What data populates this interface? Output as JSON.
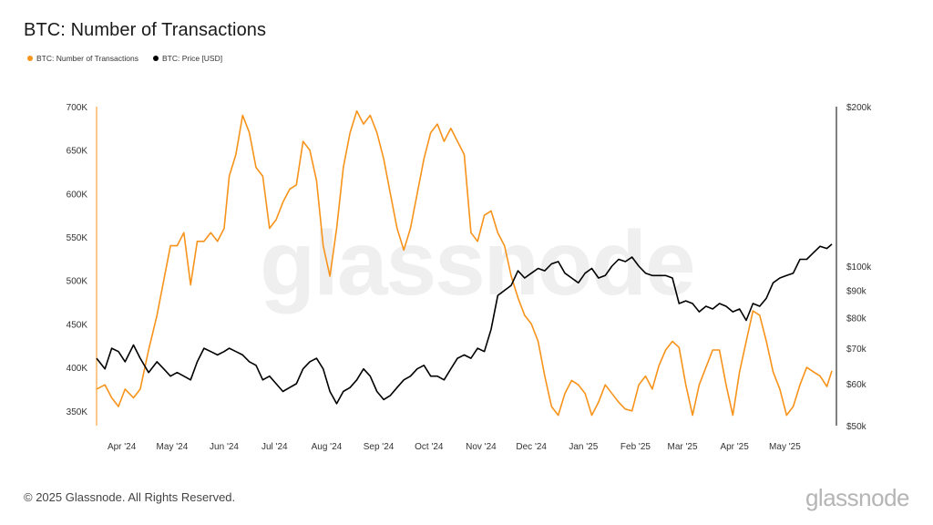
{
  "title": "BTC: Number of Transactions",
  "legend": [
    {
      "label": "BTC: Number of Transactions",
      "color": "#f7931a"
    },
    {
      "label": "BTC: Price [USD]",
      "color": "#000000"
    }
  ],
  "watermark": "glassnode",
  "footer": {
    "copyright": "© 2025 Glassnode. All Rights Reserved.",
    "logo": "glassnode"
  },
  "chart_data": {
    "type": "line",
    "title": "BTC: Number of Transactions",
    "grid": false,
    "legend_position": "top-left",
    "x_ticks": [
      "Apr '24",
      "May '24",
      "Jun '24",
      "Jul '24",
      "Aug '24",
      "Sep '24",
      "Oct '24",
      "Nov '24",
      "Dec '24",
      "Jan '25",
      "Feb '25",
      "Mar '25",
      "Apr '25",
      "May '25"
    ],
    "x_range": [
      "2024-03-17",
      "2025-05-29"
    ],
    "y_left": {
      "ticks": [
        "700K",
        "650K",
        "600K",
        "550K",
        "500K",
        "450K",
        "400K",
        "350K"
      ],
      "tick_values": [
        700000,
        650000,
        600000,
        550000,
        500000,
        450000,
        400000,
        350000
      ],
      "range": [
        333000,
        700000
      ]
    },
    "y_right": {
      "scale": "log",
      "ticks": [
        "$200k",
        "$100k",
        "$90k",
        "$80k",
        "$70k",
        "$60k",
        "$50k"
      ],
      "tick_values": [
        200000,
        100000,
        90000,
        80000,
        70000,
        60000,
        50000
      ],
      "range": [
        50000,
        200000
      ]
    },
    "series": [
      {
        "name": "BTC: Number of Transactions",
        "axis": "left",
        "color": "#f7931a",
        "x": [
          "2024-03-17",
          "2024-03-22",
          "2024-03-26",
          "2024-03-30",
          "2024-04-03",
          "2024-04-08",
          "2024-04-12",
          "2024-04-17",
          "2024-04-22",
          "2024-04-26",
          "2024-04-30",
          "2024-05-04",
          "2024-05-08",
          "2024-05-12",
          "2024-05-16",
          "2024-05-20",
          "2024-05-24",
          "2024-05-28",
          "2024-06-01",
          "2024-06-04",
          "2024-06-08",
          "2024-06-12",
          "2024-06-16",
          "2024-06-20",
          "2024-06-24",
          "2024-06-28",
          "2024-07-02",
          "2024-07-06",
          "2024-07-10",
          "2024-07-14",
          "2024-07-18",
          "2024-07-22",
          "2024-07-26",
          "2024-07-30",
          "2024-08-03",
          "2024-08-07",
          "2024-08-11",
          "2024-08-15",
          "2024-08-19",
          "2024-08-23",
          "2024-08-27",
          "2024-08-31",
          "2024-09-04",
          "2024-09-08",
          "2024-09-12",
          "2024-09-16",
          "2024-09-20",
          "2024-09-24",
          "2024-09-28",
          "2024-10-02",
          "2024-10-06",
          "2024-10-10",
          "2024-10-14",
          "2024-10-18",
          "2024-10-22",
          "2024-10-26",
          "2024-10-30",
          "2024-11-03",
          "2024-11-07",
          "2024-11-11",
          "2024-11-15",
          "2024-11-19",
          "2024-11-23",
          "2024-11-27",
          "2024-12-01",
          "2024-12-05",
          "2024-12-09",
          "2024-12-13",
          "2024-12-17",
          "2024-12-21",
          "2024-12-25",
          "2024-12-29",
          "2025-01-02",
          "2025-01-06",
          "2025-01-10",
          "2025-01-14",
          "2025-01-18",
          "2025-01-22",
          "2025-01-26",
          "2025-01-30",
          "2025-02-03",
          "2025-02-07",
          "2025-02-11",
          "2025-02-15",
          "2025-02-19",
          "2025-02-23",
          "2025-02-27",
          "2025-03-03",
          "2025-03-07",
          "2025-03-11",
          "2025-03-15",
          "2025-03-19",
          "2025-03-23",
          "2025-03-27",
          "2025-03-31",
          "2025-04-04",
          "2025-04-08",
          "2025-04-12",
          "2025-04-16",
          "2025-04-20",
          "2025-04-24",
          "2025-04-28",
          "2025-05-02",
          "2025-05-06",
          "2025-05-10",
          "2025-05-14",
          "2025-05-18",
          "2025-05-22",
          "2025-05-26",
          "2025-05-29"
        ],
        "values": [
          375000,
          380000,
          365000,
          355000,
          375000,
          365000,
          375000,
          420000,
          460000,
          500000,
          540000,
          540000,
          555000,
          495000,
          545000,
          545000,
          555000,
          545000,
          560000,
          620000,
          645000,
          690000,
          670000,
          630000,
          620000,
          560000,
          570000,
          590000,
          605000,
          610000,
          660000,
          650000,
          615000,
          540000,
          505000,
          560000,
          630000,
          670000,
          695000,
          680000,
          690000,
          670000,
          640000,
          600000,
          560000,
          535000,
          560000,
          600000,
          640000,
          670000,
          680000,
          660000,
          675000,
          660000,
          645000,
          555000,
          545000,
          575000,
          580000,
          555000,
          540000,
          505000,
          480000,
          460000,
          450000,
          430000,
          390000,
          355000,
          345000,
          370000,
          385000,
          380000,
          370000,
          345000,
          360000,
          380000,
          370000,
          360000,
          352000,
          350000,
          380000,
          390000,
          375000,
          402000,
          420000,
          430000,
          423000,
          380000,
          345000,
          380000,
          400000,
          420000,
          420000,
          380000,
          345000,
          395000,
          430000,
          465000,
          460000,
          430000,
          395000,
          375000,
          345000,
          355000,
          380000,
          400000,
          395000,
          390000,
          378000,
          396000
        ]
      },
      {
        "name": "BTC: Price [USD]",
        "axis": "right",
        "color": "#000000",
        "x": [
          "2024-03-17",
          "2024-03-22",
          "2024-03-26",
          "2024-03-30",
          "2024-04-03",
          "2024-04-08",
          "2024-04-12",
          "2024-04-17",
          "2024-04-22",
          "2024-04-26",
          "2024-04-30",
          "2024-05-04",
          "2024-05-08",
          "2024-05-12",
          "2024-05-16",
          "2024-05-20",
          "2024-05-24",
          "2024-05-28",
          "2024-06-01",
          "2024-06-04",
          "2024-06-08",
          "2024-06-12",
          "2024-06-16",
          "2024-06-20",
          "2024-06-24",
          "2024-06-28",
          "2024-07-02",
          "2024-07-06",
          "2024-07-10",
          "2024-07-14",
          "2024-07-18",
          "2024-07-22",
          "2024-07-26",
          "2024-07-30",
          "2024-08-03",
          "2024-08-07",
          "2024-08-11",
          "2024-08-15",
          "2024-08-19",
          "2024-08-23",
          "2024-08-27",
          "2024-08-31",
          "2024-09-04",
          "2024-09-08",
          "2024-09-12",
          "2024-09-16",
          "2024-09-20",
          "2024-09-24",
          "2024-09-28",
          "2024-10-02",
          "2024-10-06",
          "2024-10-10",
          "2024-10-14",
          "2024-10-18",
          "2024-10-22",
          "2024-10-26",
          "2024-10-30",
          "2024-11-03",
          "2024-11-07",
          "2024-11-11",
          "2024-11-15",
          "2024-11-19",
          "2024-11-23",
          "2024-11-27",
          "2024-12-01",
          "2024-12-05",
          "2024-12-09",
          "2024-12-13",
          "2024-12-17",
          "2024-12-21",
          "2024-12-25",
          "2024-12-29",
          "2025-01-02",
          "2025-01-06",
          "2025-01-10",
          "2025-01-14",
          "2025-01-18",
          "2025-01-22",
          "2025-01-26",
          "2025-01-30",
          "2025-02-03",
          "2025-02-07",
          "2025-02-11",
          "2025-02-15",
          "2025-02-19",
          "2025-02-23",
          "2025-02-27",
          "2025-03-03",
          "2025-03-07",
          "2025-03-11",
          "2025-03-15",
          "2025-03-19",
          "2025-03-23",
          "2025-03-27",
          "2025-03-31",
          "2025-04-04",
          "2025-04-08",
          "2025-04-12",
          "2025-04-16",
          "2025-04-20",
          "2025-04-24",
          "2025-04-28",
          "2025-05-02",
          "2025-05-06",
          "2025-05-10",
          "2025-05-14",
          "2025-05-18",
          "2025-05-22",
          "2025-05-26",
          "2025-05-29"
        ],
        "values": [
          67000,
          64000,
          70000,
          69000,
          66000,
          71000,
          67000,
          63000,
          66000,
          64000,
          62000,
          63000,
          62000,
          61000,
          66000,
          70000,
          69000,
          68000,
          69000,
          70000,
          69000,
          68000,
          66000,
          65000,
          61000,
          62000,
          60000,
          58000,
          59000,
          60000,
          64000,
          66000,
          67000,
          64000,
          58000,
          55000,
          58000,
          59000,
          61000,
          64000,
          62000,
          58000,
          56000,
          57000,
          59000,
          61000,
          62000,
          64000,
          65000,
          62000,
          62000,
          61000,
          64000,
          67000,
          68000,
          67000,
          70000,
          69000,
          76000,
          88000,
          90000,
          92000,
          98000,
          95000,
          97000,
          99000,
          98000,
          101000,
          102000,
          97000,
          95000,
          93000,
          97000,
          99000,
          95000,
          96000,
          100000,
          103000,
          102000,
          104000,
          100000,
          97000,
          96000,
          96000,
          96000,
          95000,
          85000,
          86000,
          85000,
          82000,
          84000,
          83000,
          85000,
          84000,
          82000,
          83000,
          79000,
          85000,
          84000,
          87000,
          93000,
          95000,
          96000,
          97000,
          103000,
          103000,
          106000,
          109000,
          108000,
          110000
        ]
      }
    ]
  }
}
